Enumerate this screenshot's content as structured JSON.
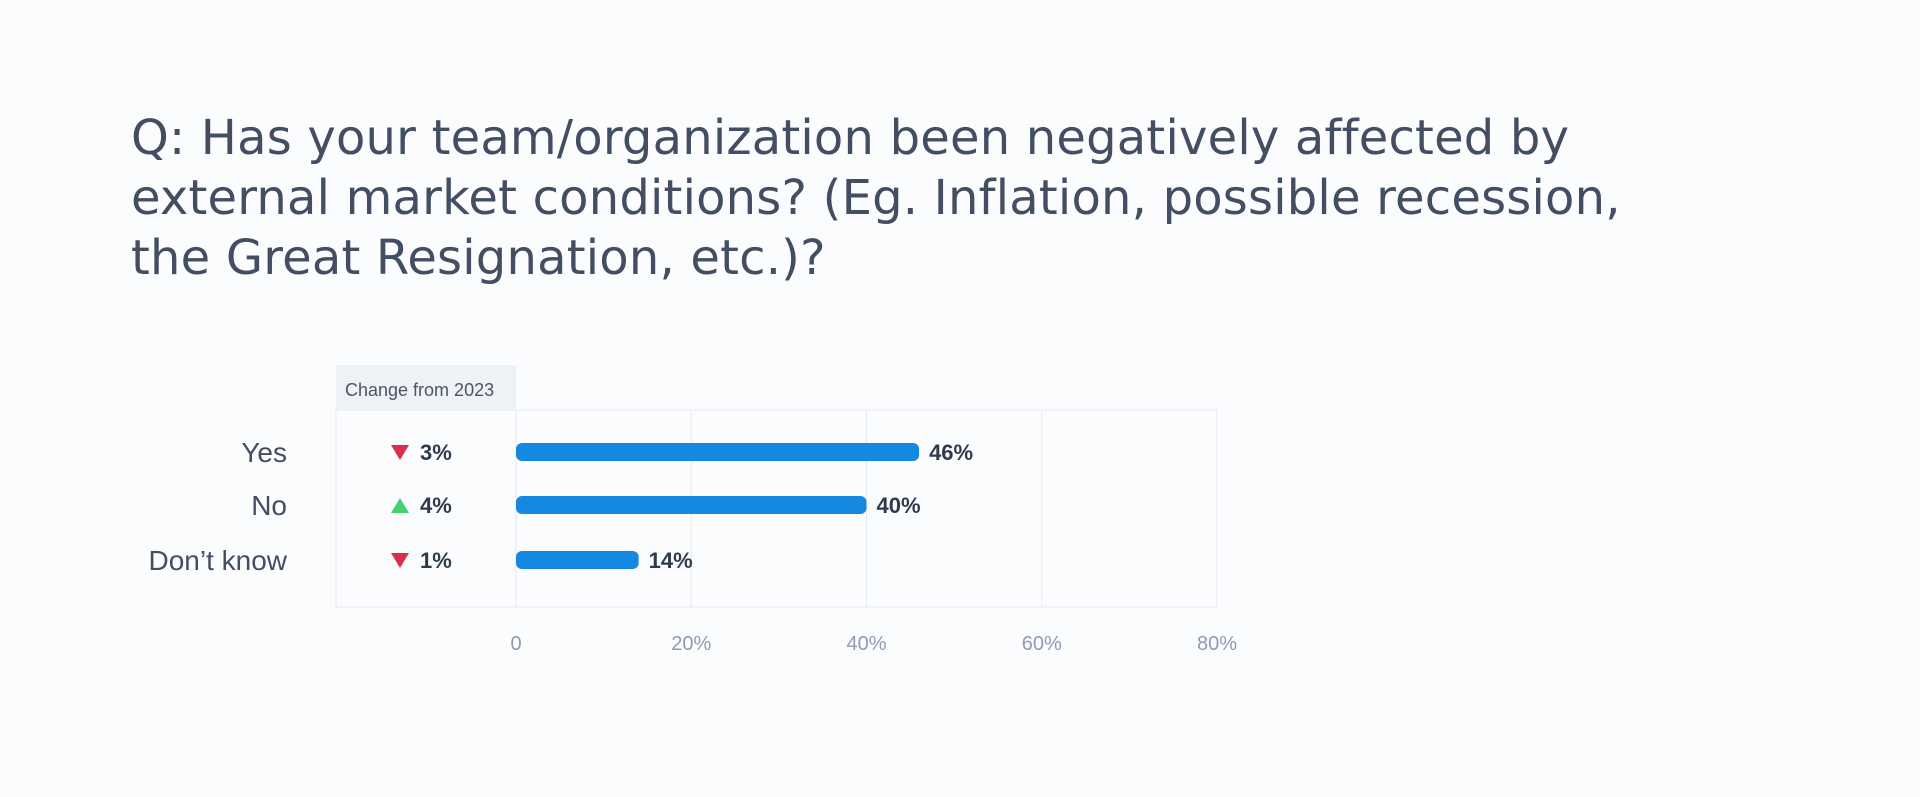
{
  "title": "Q: Has your team/organization been negatively affected by external market conditions? (Eg. Inflation, possible recession, the Great Resignation, etc.)?",
  "colors": {
    "bar": "#1589e0",
    "down": "#dc2f4b",
    "up": "#43d070",
    "text": "#434e63",
    "grid": "#e6e9ef",
    "header_bg": "#eef1f6"
  },
  "chart_data": {
    "type": "bar",
    "orientation": "horizontal",
    "title": "Q: Has your team/organization been negatively affected by external market conditions? (Eg. Inflation, possible recession, the Great Resignation, etc.)?",
    "categories": [
      "Yes",
      "No",
      "Don’t know"
    ],
    "values": [
      46,
      40,
      14
    ],
    "value_labels": [
      "46%",
      "40%",
      "14%"
    ],
    "xlim": [
      0,
      80
    ],
    "x_ticks": [
      "0",
      "20%",
      "40%",
      "60%",
      "80%"
    ],
    "grid": true,
    "change_header": "Change from 2023",
    "changes": [
      {
        "direction": "down",
        "label": "3%",
        "icon": "triangle-down-icon"
      },
      {
        "direction": "up",
        "label": "4%",
        "icon": "triangle-up-icon"
      },
      {
        "direction": "down",
        "label": "1%",
        "icon": "triangle-down-icon"
      }
    ]
  }
}
